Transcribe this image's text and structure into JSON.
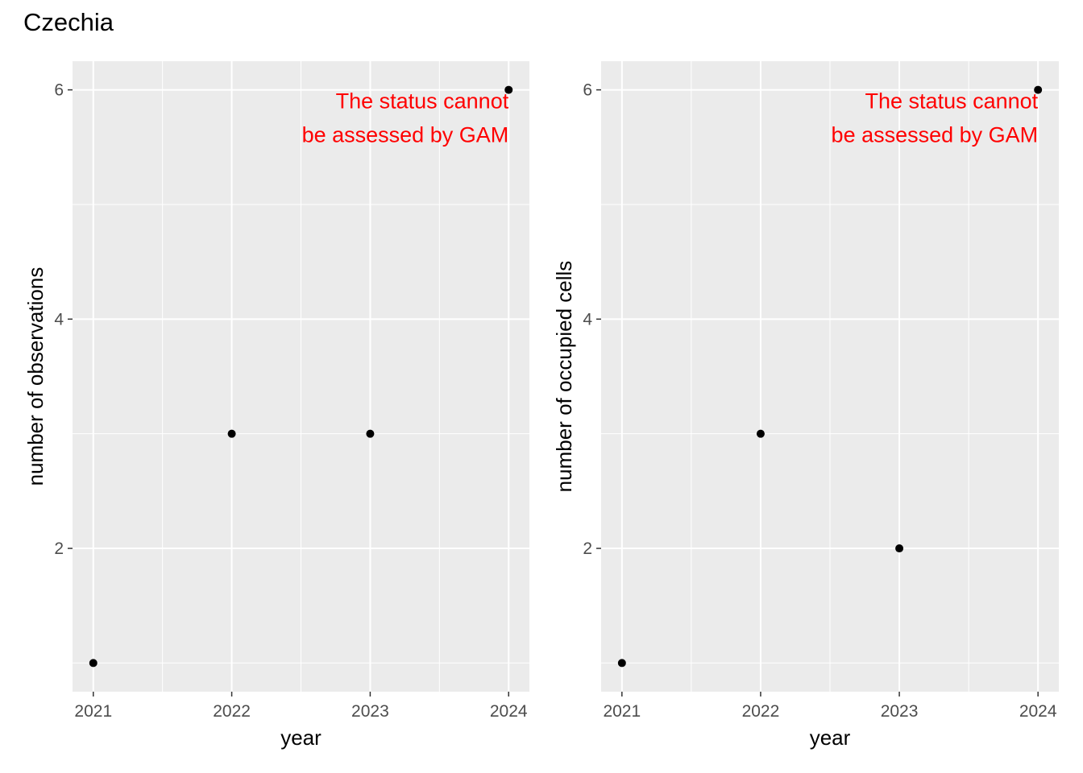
{
  "title": "Czechia",
  "chart_data": [
    {
      "type": "scatter",
      "xlabel": "year",
      "ylabel": "number of observations",
      "x": [
        2021,
        2022,
        2023,
        2024
      ],
      "y": [
        1,
        3,
        3,
        6
      ],
      "xlim": [
        2020.85,
        2024.15
      ],
      "ylim": [
        0.75,
        6.25
      ],
      "xticks": [
        2021,
        2022,
        2023,
        2024
      ],
      "yticks": [
        2,
        4,
        6
      ],
      "grid": true,
      "annotation": {
        "lines": [
          "The status cannot",
          "be assessed by GAM"
        ],
        "color": "#ff0000"
      }
    },
    {
      "type": "scatter",
      "xlabel": "year",
      "ylabel": "number of occupied cells",
      "x": [
        2021,
        2022,
        2023,
        2024
      ],
      "y": [
        1,
        3,
        2,
        6
      ],
      "xlim": [
        2020.85,
        2024.15
      ],
      "ylim": [
        0.75,
        6.25
      ],
      "xticks": [
        2021,
        2022,
        2023,
        2024
      ],
      "yticks": [
        2,
        4,
        6
      ],
      "grid": true,
      "annotation": {
        "lines": [
          "The status cannot",
          "be assessed by GAM"
        ],
        "color": "#ff0000"
      }
    }
  ],
  "colors": {
    "panel": "#ebebeb",
    "grid": "#ffffff",
    "point": "#000000",
    "tick": "#4d4d4d"
  }
}
